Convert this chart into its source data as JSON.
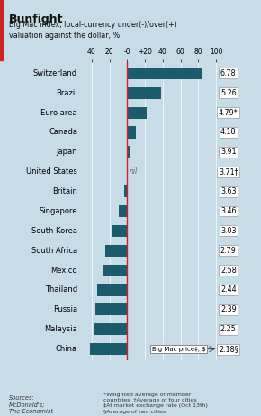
{
  "title": "Bunfight",
  "subtitle": "Big Mac index, local-currency under(-)/over(+)\nvaluation against the dollar, %",
  "countries": [
    "Switzerland",
    "Brazil",
    "Euro area",
    "Canada",
    "Japan",
    "United States",
    "Britain",
    "Singapore",
    "South Korea",
    "South Africa",
    "Mexico",
    "Thailand",
    "Russia",
    "Malaysia",
    "China"
  ],
  "values": [
    83.5,
    38.0,
    22.0,
    9.5,
    3.5,
    0.0,
    -3.0,
    -9.0,
    -18.0,
    -24.5,
    -27.0,
    -34.0,
    -35.5,
    -38.0,
    -41.5
  ],
  "prices": [
    "6.78",
    "5.26",
    "4.79*",
    "4.18",
    "3.91",
    "3.71†",
    "3.63",
    "3.46",
    "3.03",
    "2.79",
    "2.58",
    "2.44",
    "2.39",
    "2.25",
    "2.18§"
  ],
  "bar_color": "#1a5c6e",
  "bg_color": "#c8dce8",
  "zero_line_color": "#cc2222",
  "xlim_min": -55,
  "xlim_max": 108,
  "xticks": [
    -40,
    -20,
    0,
    20,
    40,
    60,
    80,
    100
  ],
  "xtick_labels": [
    "40",
    "20",
    "-0",
    "+20",
    "40",
    "60",
    "80",
    "100"
  ],
  "nil_label": "nil",
  "price_label": "Big Mac price‡, $",
  "footnote": "*Weighted average of member\ncountries  †Average of four cities\n‡At market exchange rate (Oct 13th)\n§Average of two cities",
  "sources": "Sources:\nMcDonald's;\nThe Economist"
}
